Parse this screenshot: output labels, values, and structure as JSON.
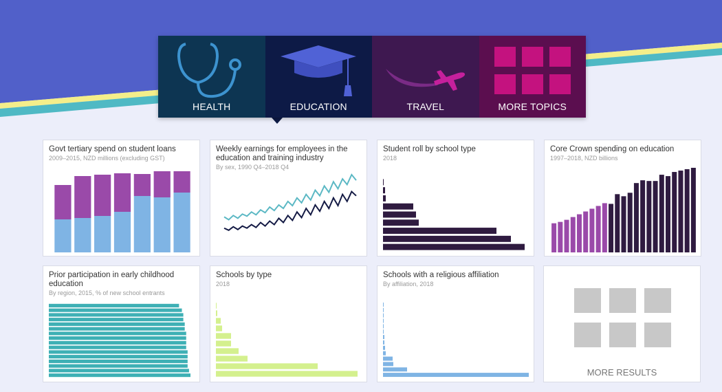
{
  "tabs": [
    {
      "label": "HEALTH"
    },
    {
      "label": "EDUCATION"
    },
    {
      "label": "TRAVEL"
    },
    {
      "label": "MORE TOPICS"
    }
  ],
  "cards": [
    {
      "title": "Govt tertiary spend on student loans",
      "subtitle": "2009–2015, NZD millions (excluding GST)",
      "chart": {
        "type": "stacked-bar",
        "series": [
          {
            "color": "#7fb4e4",
            "values": [
              48,
              50,
              53,
              59,
              82,
              80,
              87
            ]
          },
          {
            "color": "#9a4aa9",
            "values": [
              50,
              61,
              60,
              56,
              32,
              38,
              31
            ]
          }
        ]
      }
    },
    {
      "title": "Weekly earnings for employees in the education and training industry",
      "subtitle": "By sex, 1990 Q4–2018 Q4",
      "chart": {
        "type": "line",
        "series": [
          {
            "color": "#5bb8c4",
            "values": [
              28,
              24,
              30,
              26,
              32,
              29,
              35,
              31,
              38,
              34,
              42,
              37,
              45,
              40,
              50,
              44,
              55,
              48,
              60,
              52,
              66,
              58,
              72,
              63,
              78,
              68,
              82,
              74,
              88,
              80
            ]
          },
          {
            "color": "#141a44",
            "values": [
              12,
              9,
              14,
              10,
              15,
              12,
              17,
              13,
              20,
              15,
              22,
              17,
              26,
              20,
              30,
              23,
              35,
              27,
              40,
              31,
              45,
              36,
              50,
              40,
              55,
              44,
              60,
              50,
              64,
              58
            ]
          }
        ]
      }
    },
    {
      "title": "Student roll by school type",
      "subtitle": "2018",
      "chart": {
        "type": "hbar",
        "color": "#2f1b40",
        "values": [
          1,
          3,
          4,
          44,
          48,
          52,
          165,
          186,
          206
        ]
      }
    },
    {
      "title": "Core Crown spending on education",
      "subtitle": "1997–2018, NZD billions",
      "chart": {
        "type": "bar",
        "series": [
          {
            "color": "#9a4aa9",
            "values": [
              42,
              44,
              47,
              51,
              55,
              59,
              63,
              67,
              71
            ]
          },
          {
            "color": "#2f1b40",
            "values": [
              70,
              84,
              81,
              86,
              100,
              104,
              103,
              103,
              112,
              110,
              116,
              118,
              120,
              122
            ]
          }
        ]
      }
    },
    {
      "title": "Prior participation in early childhood education",
      "subtitle": "By region, 2015, % of new school entrants",
      "chart": {
        "type": "hbar",
        "color": "#3eb0b5",
        "values": [
          91,
          93,
          94,
          94,
          95,
          95,
          96,
          96,
          96,
          96,
          97,
          97,
          97,
          97,
          98,
          99
        ]
      }
    },
    {
      "title": "Schools by type",
      "subtitle": "2018",
      "chart": {
        "type": "hbar",
        "color": "#d4f08e",
        "values": [
          1,
          2,
          7,
          9,
          22,
          22,
          33,
          46,
          148,
          206
        ]
      }
    },
    {
      "title": "Schools with a religious affiliation",
      "subtitle": "By affiliation, 2018",
      "chart": {
        "type": "hbar",
        "color": "#7fb4e4",
        "values": [
          1,
          1,
          1,
          1,
          1,
          1,
          2,
          2,
          3,
          4,
          14,
          15,
          35,
          212
        ]
      }
    }
  ],
  "more_results": "MORE RESULTS"
}
